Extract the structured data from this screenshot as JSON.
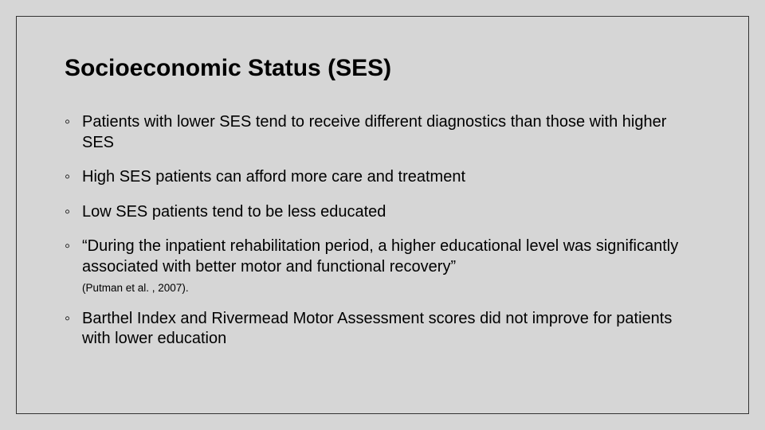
{
  "slide": {
    "background_color": "#d6d6d6",
    "border_color": "#333333",
    "text_color": "#000000",
    "title": "Socioeconomic Status (SES)",
    "title_fontsize": 30,
    "title_fontweight": "bold",
    "body_fontsize": 20,
    "citation_fontsize": 13.5,
    "bullet_char": "◦",
    "bullets": [
      {
        "text": "Patients with lower SES tend to receive different diagnostics than those with higher SES"
      },
      {
        "text": "High SES patients can afford more care and treatment"
      },
      {
        "text": "Low SES patients tend to be less educated"
      },
      {
        "text": "“During the inpatient rehabilitation period, a higher educational level was significantly associated with better motor and functional recovery”",
        "citation": "(Putman et al. , 2007)."
      },
      {
        "text": "Barthel Index and Rivermead Motor Assessment scores did not improve for patients with lower education"
      }
    ]
  }
}
